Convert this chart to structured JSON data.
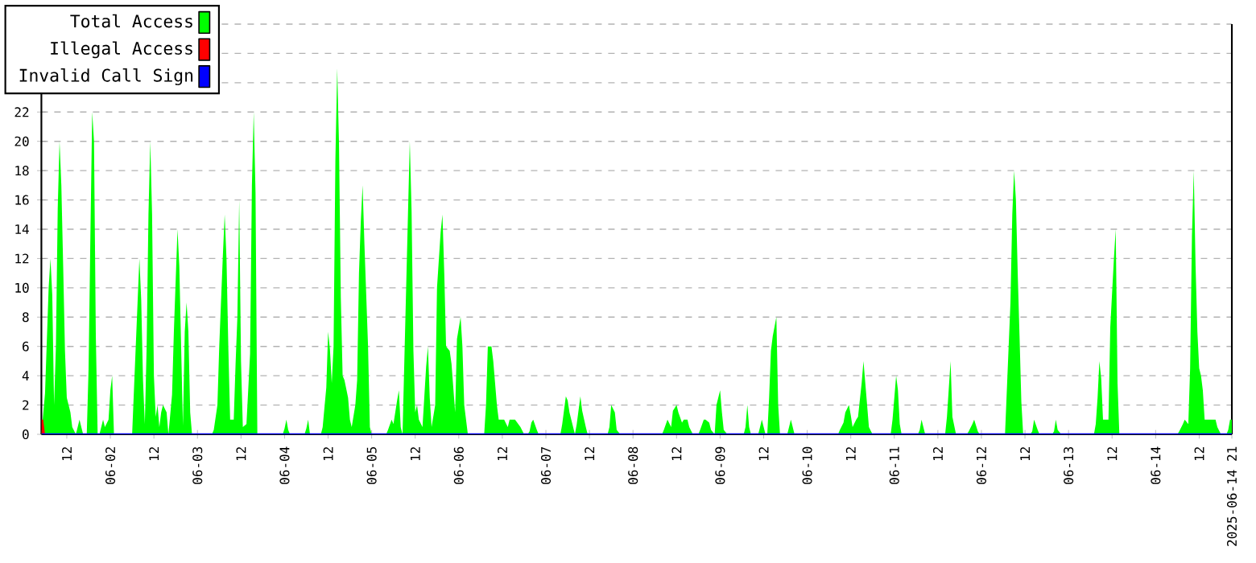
{
  "chart_data": {
    "type": "area",
    "xlim": [
      "2025-06-01T05:00",
      "2025-06-14T21:00"
    ],
    "ylim": [
      0,
      28
    ],
    "yticks": [
      0,
      2,
      4,
      6,
      8,
      10,
      12,
      14,
      16,
      18,
      20,
      22,
      {
        "value": 24,
        "label": null
      },
      {
        "value": 26,
        "label": null
      },
      {
        "value": 28,
        "label": null
      }
    ],
    "xticks": [
      {
        "value": "2025-06-01T12:00",
        "label": "12"
      },
      {
        "value": "2025-06-02T00:00",
        "label": "06-02"
      },
      {
        "value": "2025-06-02T12:00",
        "label": "12"
      },
      {
        "value": "2025-06-03T00:00",
        "label": "06-03"
      },
      {
        "value": "2025-06-03T12:00",
        "label": "12"
      },
      {
        "value": "2025-06-04T00:00",
        "label": "06-04"
      },
      {
        "value": "2025-06-04T12:00",
        "label": "12"
      },
      {
        "value": "2025-06-05T00:00",
        "label": "06-05"
      },
      {
        "value": "2025-06-05T12:00",
        "label": "12"
      },
      {
        "value": "2025-06-06T00:00",
        "label": "06-06"
      },
      {
        "value": "2025-06-06T12:00",
        "label": "12"
      },
      {
        "value": "2025-06-07T00:00",
        "label": "06-07"
      },
      {
        "value": "2025-06-07T12:00",
        "label": "12"
      },
      {
        "value": "2025-06-08T00:00",
        "label": "06-08"
      },
      {
        "value": "2025-06-08T12:00",
        "label": "12"
      },
      {
        "value": "2025-06-09T00:00",
        "label": "06-09"
      },
      {
        "value": "2025-06-09T12:00",
        "label": "12"
      },
      {
        "value": "2025-06-10T00:00",
        "label": "06-10"
      },
      {
        "value": "2025-06-10T12:00",
        "label": "12"
      },
      {
        "value": "2025-06-11T00:00",
        "label": "06-11"
      },
      {
        "value": "2025-06-11T12:00",
        "label": "12"
      },
      {
        "value": "2025-06-12T00:00",
        "label": "06-12"
      },
      {
        "value": "2025-06-12T12:00",
        "label": "12"
      },
      {
        "value": "2025-06-13T00:00",
        "label": "06-13"
      },
      {
        "value": "2025-06-13T12:00",
        "label": "12"
      },
      {
        "value": "2025-06-14T00:00",
        "label": "06-14"
      },
      {
        "value": "2025-06-14T12:00",
        "label": "12"
      },
      {
        "value": "2025-06-14T21:00",
        "label": "2025-06-14 21"
      }
    ],
    "grid": "y",
    "legend": "top left",
    "series": [
      {
        "name": "Total Access",
        "color": "#00ff00",
        "x": [
          "2025-06-01T05:00",
          "2025-06-01T06:00",
          "2025-06-01T06:30",
          "2025-06-01T07:00",
          "2025-06-01T07:30",
          "2025-06-01T08:00",
          "2025-06-01T08:30",
          "2025-06-01T09:00",
          "2025-06-01T09:30",
          "2025-06-01T10:00",
          "2025-06-01T10:30",
          "2025-06-01T11:00",
          "2025-06-01T11:30",
          "2025-06-01T12:00",
          "2025-06-01T13:00",
          "2025-06-01T13:30",
          "2025-06-01T14:30",
          "2025-06-01T15:00",
          "2025-06-01T15:30",
          "2025-06-01T16:00",
          "2025-06-01T16:30",
          "2025-06-01T17:30",
          "2025-06-01T18:00",
          "2025-06-01T18:30",
          "2025-06-01T19:00",
          "2025-06-01T19:30",
          "2025-06-01T20:00",
          "2025-06-01T20:30",
          "2025-06-01T21:00",
          "2025-06-01T21:30",
          "2025-06-01T22:00",
          "2025-06-01T22:30",
          "2025-06-01T23:30",
          "2025-06-02T00:00",
          "2025-06-02T00:30",
          "2025-06-02T01:00",
          "2025-06-02T06:00",
          "2025-06-02T06:30",
          "2025-06-02T07:30",
          "2025-06-02T08:00",
          "2025-06-02T08:30",
          "2025-06-02T09:00",
          "2025-06-02T09:30",
          "2025-06-02T10:00",
          "2025-06-02T10:30",
          "2025-06-02T11:00",
          "2025-06-02T11:30",
          "2025-06-02T12:00",
          "2025-06-02T12:30",
          "2025-06-02T13:00",
          "2025-06-02T13:30",
          "2025-06-02T14:00",
          "2025-06-02T14:30",
          "2025-06-02T15:30",
          "2025-06-02T16:00",
          "2025-06-02T17:00",
          "2025-06-02T17:30",
          "2025-06-02T18:30",
          "2025-06-02T19:00",
          "2025-06-02T19:30",
          "2025-06-02T20:00",
          "2025-06-02T20:30",
          "2025-06-02T21:00",
          "2025-06-02T21:30",
          "2025-06-02T22:00",
          "2025-06-02T22:30",
          "2025-06-03T04:00",
          "2025-06-03T04:30",
          "2025-06-03T05:30",
          "2025-06-03T06:00",
          "2025-06-03T07:00",
          "2025-06-03T07:30",
          "2025-06-03T08:00",
          "2025-06-03T08:30",
          "2025-06-03T09:00",
          "2025-06-03T10:00",
          "2025-06-03T10:30",
          "2025-06-03T11:00",
          "2025-06-03T11:30",
          "2025-06-03T12:00",
          "2025-06-03T12:30",
          "2025-06-03T13:30",
          "2025-06-03T14:30",
          "2025-06-03T15:00",
          "2025-06-03T15:30",
          "2025-06-03T16:00",
          "2025-06-03T16:30",
          "2025-06-03T23:30",
          "2025-06-04T00:00",
          "2025-06-04T00:30",
          "2025-06-04T01:00",
          "2025-06-04T01:30",
          "2025-06-04T05:30",
          "2025-06-04T06:00",
          "2025-06-04T06:30",
          "2025-06-04T07:00",
          "2025-06-04T10:00",
          "2025-06-04T10:30",
          "2025-06-04T11:30",
          "2025-06-04T12:00",
          "2025-06-04T12:30",
          "2025-06-04T13:00",
          "2025-06-04T13:30",
          "2025-06-04T14:00",
          "2025-06-04T14:30",
          "2025-06-04T15:00",
          "2025-06-04T15:30",
          "2025-06-04T16:00",
          "2025-06-04T16:30",
          "2025-06-04T17:30",
          "2025-06-04T18:00",
          "2025-06-04T18:30",
          "2025-06-04T19:30",
          "2025-06-04T20:00",
          "2025-06-04T20:30",
          "2025-06-04T21:00",
          "2025-06-04T21:30",
          "2025-06-04T22:00",
          "2025-06-04T23:00",
          "2025-06-04T23:30",
          "2025-06-05T00:00",
          "2025-06-05T04:00",
          "2025-06-05T04:30",
          "2025-06-05T05:30",
          "2025-06-05T06:00",
          "2025-06-05T07:00",
          "2025-06-05T07:30",
          "2025-06-05T08:00",
          "2025-06-05T08:30",
          "2025-06-05T09:00",
          "2025-06-05T10:00",
          "2025-06-05T10:30",
          "2025-06-05T11:00",
          "2025-06-05T11:30",
          "2025-06-05T12:00",
          "2025-06-05T12:30",
          "2025-06-05T13:00",
          "2025-06-05T14:00",
          "2025-06-05T15:00",
          "2025-06-05T15:30",
          "2025-06-05T16:00",
          "2025-06-05T16:30",
          "2025-06-05T17:30",
          "2025-06-05T18:00",
          "2025-06-05T19:00",
          "2025-06-05T19:30",
          "2025-06-05T20:00",
          "2025-06-05T20:30",
          "2025-06-05T21:30",
          "2025-06-05T22:00",
          "2025-06-05T23:00",
          "2025-06-05T23:30",
          "2025-06-06T00:30",
          "2025-06-06T01:00",
          "2025-06-06T01:30",
          "2025-06-06T02:30",
          "2025-06-06T07:00",
          "2025-06-06T07:30",
          "2025-06-06T08:00",
          "2025-06-06T09:00",
          "2025-06-06T09:30",
          "2025-06-06T10:30",
          "2025-06-06T11:00",
          "2025-06-06T12:30",
          "2025-06-06T13:30",
          "2025-06-06T14:00",
          "2025-06-06T15:30",
          "2025-06-06T17:00",
          "2025-06-06T18:00",
          "2025-06-06T19:00",
          "2025-06-06T19:30",
          "2025-06-06T20:00",
          "2025-06-06T20:30",
          "2025-06-06T21:30",
          "2025-06-06T22:00",
          "2025-06-07T04:00",
          "2025-06-07T04:30",
          "2025-06-07T05:30",
          "2025-06-07T06:00",
          "2025-06-07T06:30",
          "2025-06-07T07:30",
          "2025-06-07T08:00",
          "2025-06-07T08:30",
          "2025-06-07T09:30",
          "2025-06-07T10:00",
          "2025-06-07T11:00",
          "2025-06-07T11:30",
          "2025-06-07T17:00",
          "2025-06-07T17:30",
          "2025-06-07T18:00",
          "2025-06-07T19:00",
          "2025-06-07T19:30",
          "2025-06-07T20:30",
          "2025-06-08T08:00",
          "2025-06-08T08:30",
          "2025-06-08T09:30",
          "2025-06-08T10:30",
          "2025-06-08T11:00",
          "2025-06-08T12:00",
          "2025-06-08T12:30",
          "2025-06-08T13:30",
          "2025-06-08T14:00",
          "2025-06-08T15:00",
          "2025-06-08T15:30",
          "2025-06-08T16:30",
          "2025-06-08T18:00",
          "2025-06-08T18:30",
          "2025-06-08T19:30",
          "2025-06-08T20:00",
          "2025-06-08T21:00",
          "2025-06-08T21:30",
          "2025-06-08T22:30",
          "2025-06-08T23:00",
          "2025-06-09T00:00",
          "2025-06-09T00:30",
          "2025-06-09T01:00",
          "2025-06-09T02:00",
          "2025-06-09T06:30",
          "2025-06-09T07:00",
          "2025-06-09T07:30",
          "2025-06-09T08:00",
          "2025-06-09T08:30",
          "2025-06-09T10:30",
          "2025-06-09T11:00",
          "2025-06-09T11:30",
          "2025-06-09T12:30",
          "2025-06-09T13:00",
          "2025-06-09T13:30",
          "2025-06-09T14:00",
          "2025-06-09T14:30",
          "2025-06-09T15:30",
          "2025-06-09T16:00",
          "2025-06-09T16:30",
          "2025-06-09T18:30",
          "2025-06-09T19:00",
          "2025-06-09T19:30",
          "2025-06-09T20:30",
          "2025-06-10T08:30",
          "2025-06-10T09:00",
          "2025-06-10T10:00",
          "2025-06-10T10:30",
          "2025-06-10T11:30",
          "2025-06-10T12:00",
          "2025-06-10T12:30",
          "2025-06-10T13:30",
          "2025-06-10T14:00",
          "2025-06-10T15:00",
          "2025-06-10T15:30",
          "2025-06-10T16:30",
          "2025-06-10T17:00",
          "2025-06-10T18:00",
          "2025-06-10T23:00",
          "2025-06-10T23:30",
          "2025-06-11T00:30",
          "2025-06-11T01:00",
          "2025-06-11T01:30",
          "2025-06-11T02:00",
          "2025-06-11T06:30",
          "2025-06-11T07:00",
          "2025-06-11T07:30",
          "2025-06-11T08:00",
          "2025-06-11T08:30",
          "2025-06-11T14:00",
          "2025-06-11T14:30",
          "2025-06-11T15:30",
          "2025-06-11T16:00",
          "2025-06-11T17:00",
          "2025-06-11T20:00",
          "2025-06-11T20:30",
          "2025-06-11T21:30",
          "2025-06-11T22:00",
          "2025-06-11T23:00",
          "2025-06-11T23:30",
          "2025-06-12T06:30",
          "2025-06-12T07:00",
          "2025-06-12T08:00",
          "2025-06-12T08:30",
          "2025-06-12T09:00",
          "2025-06-12T09:30",
          "2025-06-12T10:00",
          "2025-06-12T10:30",
          "2025-06-12T11:00",
          "2025-06-12T11:30",
          "2025-06-12T13:30",
          "2025-06-12T14:00",
          "2025-06-12T14:30",
          "2025-06-12T15:30",
          "2025-06-12T16:00",
          "2025-06-12T19:30",
          "2025-06-12T20:00",
          "2025-06-12T20:30",
          "2025-06-12T21:00",
          "2025-06-12T22:00",
          "2025-06-13T07:00",
          "2025-06-13T07:30",
          "2025-06-13T08:00",
          "2025-06-13T08:30",
          "2025-06-13T09:00",
          "2025-06-13T09:30",
          "2025-06-13T11:00",
          "2025-06-13T11:30",
          "2025-06-13T12:30",
          "2025-06-13T13:00",
          "2025-06-13T13:30",
          "2025-06-13T14:00",
          "2025-06-14T06:00",
          "2025-06-14T06:30",
          "2025-06-14T07:30",
          "2025-06-14T08:00",
          "2025-06-14T09:00",
          "2025-06-14T09:30",
          "2025-06-14T10:00",
          "2025-06-14T10:30",
          "2025-06-14T11:00",
          "2025-06-14T11:30",
          "2025-06-14T12:00",
          "2025-06-14T12:30",
          "2025-06-14T13:00",
          "2025-06-14T13:30",
          "2025-06-14T15:00",
          "2025-06-14T16:30",
          "2025-06-14T17:00",
          "2025-06-14T18:00",
          "2025-06-14T19:30",
          "2025-06-14T20:00",
          "2025-06-14T20:30",
          "2025-06-14T21:00"
        ],
        "values": [
          0,
          2.8,
          6.4,
          10,
          12,
          9.5,
          2,
          6,
          15.4,
          20,
          17,
          11.5,
          5.7,
          2.5,
          1.5,
          0.5,
          0,
          0.5,
          1,
          0.5,
          0,
          0,
          4.5,
          13.5,
          22,
          20,
          6.7,
          0,
          0,
          0.5,
          1,
          0.5,
          1,
          3,
          4,
          0,
          0,
          3,
          9,
          12,
          9.2,
          3.7,
          0.7,
          6,
          15,
          20,
          15,
          4,
          1.2,
          2,
          0.5,
          1.5,
          2,
          1.5,
          0,
          2.7,
          7,
          14,
          11.5,
          6,
          0.6,
          7,
          9,
          7,
          1.5,
          0,
          0,
          0.3,
          2,
          6,
          12.2,
          15,
          12,
          6,
          1,
          1,
          4.8,
          8,
          16,
          5,
          0.5,
          0.7,
          5.5,
          17,
          22,
          16.5,
          0,
          0,
          0.4,
          1,
          0.3,
          0,
          0,
          0.4,
          1,
          0,
          0,
          0.5,
          3.2,
          7,
          5.8,
          3.5,
          6,
          18.7,
          25,
          19.8,
          9.3,
          4,
          3.7,
          2.5,
          1,
          0.5,
          2,
          3.7,
          11,
          14.5,
          17,
          13,
          6,
          0.5,
          0,
          0,
          0.3,
          1,
          0.7,
          2.3,
          3,
          0.5,
          0,
          5,
          15,
          20,
          15.2,
          5.7,
          1.5,
          2,
          1,
          0.5,
          4.6,
          6,
          2.5,
          0.5,
          2,
          10,
          13.8,
          15,
          11,
          6,
          5.7,
          4.8,
          1.5,
          6.5,
          8,
          6,
          2,
          0,
          0,
          2,
          6,
          6,
          5,
          2,
          1,
          1,
          0.5,
          1,
          1,
          0.5,
          0,
          0,
          0.2,
          0.8,
          1,
          0.3,
          0,
          0,
          0.7,
          2.6,
          2.3,
          1.5,
          0.5,
          0,
          0.7,
          2.6,
          1.6,
          0.5,
          0,
          0,
          0.5,
          2,
          1.5,
          0.3,
          0,
          0,
          0.3,
          1,
          0.5,
          1.6,
          2,
          1.5,
          0.8,
          1,
          1,
          0.5,
          0,
          0,
          0.3,
          1,
          1,
          0.8,
          0.3,
          0,
          2,
          3,
          1.5,
          0.3,
          0,
          0,
          0.5,
          2,
          0.5,
          0,
          0,
          0.5,
          1,
          0,
          0,
          2.5,
          5.7,
          6.7,
          8,
          2,
          0,
          0,
          0.5,
          1,
          0,
          0,
          0.3,
          0.8,
          1.5,
          2,
          1.3,
          0.5,
          1,
          1.2,
          3.5,
          5,
          2,
          0.5,
          0,
          0,
          1,
          4,
          3,
          0.7,
          0,
          0,
          0.3,
          1,
          0.5,
          0,
          0,
          1.2,
          5,
          1.2,
          0,
          0,
          0.2,
          0.7,
          1,
          0.2,
          0,
          0,
          3,
          9,
          15,
          18,
          16,
          11,
          6.7,
          2.2,
          0,
          0,
          0.2,
          1,
          0.3,
          0,
          0,
          0.2,
          1,
          0.3,
          0,
          0,
          0.7,
          2.5,
          5,
          3.8,
          1,
          1,
          7.3,
          12,
          14,
          3.5,
          0,
          0,
          0.2,
          0.7,
          1,
          0.7,
          4.5,
          13.5,
          18,
          11.5,
          7,
          4.5,
          4,
          3,
          1,
          1,
          1,
          0.5,
          0,
          0,
          0.3,
          1,
          1
        ]
      },
      {
        "name": "Illegal Access",
        "color": "#ff0000",
        "x": [
          "2025-06-01T05:00",
          "2025-06-01T05:30",
          "2025-06-01T06:00"
        ],
        "values": [
          1,
          1,
          0
        ]
      },
      {
        "name": "Invalid Call Sign",
        "type": "line",
        "color": "#0000ff",
        "x": [
          "2025-06-01T05:00",
          "2025-06-14T21:00"
        ],
        "values": [
          0,
          0
        ]
      }
    ]
  }
}
